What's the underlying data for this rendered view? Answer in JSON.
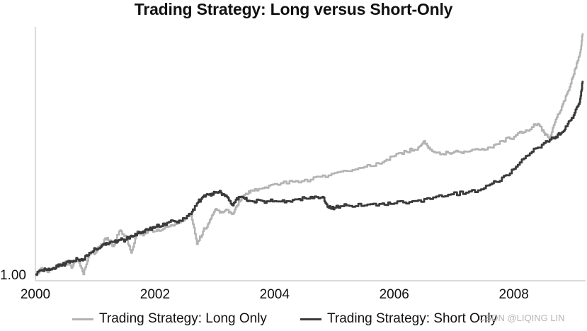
{
  "chart_data": {
    "type": "line",
    "title": "Trading Strategy: Long versus Short-Only",
    "xlabel": "",
    "ylabel": "",
    "x_ticks": [
      "2000",
      "2002",
      "2004",
      "2006",
      "2008"
    ],
    "y_ticks": [
      "1.00"
    ],
    "xlim": [
      2000,
      2009.2
    ],
    "ylim": [
      0.97,
      2.15
    ],
    "grid": false,
    "legend_position": "bottom",
    "series": [
      {
        "name": "Trading Strategy: Long Only",
        "color": "#b3b3b3",
        "x": [
          2000.0,
          2000.1,
          2000.2,
          2000.3,
          2000.4,
          2000.5,
          2000.6,
          2000.7,
          2000.8,
          2000.9,
          2001.0,
          2001.1,
          2001.2,
          2001.3,
          2001.4,
          2001.5,
          2001.6,
          2001.7,
          2001.8,
          2001.9,
          2002.0,
          2002.2,
          2002.4,
          2002.6,
          2002.7,
          2002.8,
          2002.9,
          2003.0,
          2003.1,
          2003.2,
          2003.3,
          2003.4,
          2003.5,
          2003.6,
          2003.8,
          2004.0,
          2004.3,
          2004.6,
          2004.9,
          2005.2,
          2005.5,
          2005.8,
          2006.0,
          2006.2,
          2006.4,
          2006.5,
          2006.6,
          2006.8,
          2007.0,
          2007.2,
          2007.4,
          2007.6,
          2007.8,
          2008.0,
          2008.2,
          2008.4,
          2008.5,
          2008.6,
          2008.7,
          2008.8,
          2008.9,
          2009.0,
          2009.1,
          2009.15
        ],
        "values": [
          0.995,
          1.03,
          1.01,
          1.03,
          1.04,
          1.06,
          1.03,
          1.07,
          1.0,
          1.1,
          1.1,
          1.14,
          1.17,
          1.13,
          1.2,
          1.18,
          1.1,
          1.2,
          1.18,
          1.21,
          1.2,
          1.22,
          1.24,
          1.28,
          1.14,
          1.2,
          1.24,
          1.3,
          1.29,
          1.3,
          1.28,
          1.34,
          1.37,
          1.39,
          1.4,
          1.42,
          1.43,
          1.44,
          1.46,
          1.48,
          1.5,
          1.52,
          1.55,
          1.57,
          1.59,
          1.62,
          1.58,
          1.56,
          1.57,
          1.57,
          1.58,
          1.59,
          1.62,
          1.64,
          1.67,
          1.7,
          1.66,
          1.63,
          1.72,
          1.78,
          1.85,
          1.93,
          2.02,
          2.12
        ]
      },
      {
        "name": "Trading Strategy: Short Only",
        "color": "#3a3a3a",
        "x": [
          2000.0,
          2000.1,
          2000.2,
          2000.3,
          2000.4,
          2000.5,
          2000.6,
          2000.7,
          2000.8,
          2000.9,
          2001.0,
          2001.1,
          2001.2,
          2001.3,
          2001.4,
          2001.5,
          2001.6,
          2001.7,
          2001.8,
          2001.9,
          2002.0,
          2002.2,
          2002.4,
          2002.6,
          2002.7,
          2002.8,
          2002.9,
          2003.0,
          2003.1,
          2003.2,
          2003.3,
          2003.4,
          2003.5,
          2003.6,
          2003.8,
          2004.0,
          2004.2,
          2004.4,
          2004.6,
          2004.8,
          2004.9,
          2005.0,
          2005.2,
          2005.5,
          2005.8,
          2006.0,
          2006.3,
          2006.6,
          2006.9,
          2007.2,
          2007.5,
          2007.7,
          2007.9,
          2008.1,
          2008.3,
          2008.5,
          2008.7,
          2008.8,
          2008.9,
          2009.0,
          2009.1,
          2009.15
        ],
        "values": [
          1.0,
          1.02,
          1.02,
          1.03,
          1.04,
          1.05,
          1.06,
          1.07,
          1.07,
          1.1,
          1.12,
          1.13,
          1.14,
          1.15,
          1.16,
          1.16,
          1.18,
          1.19,
          1.2,
          1.21,
          1.22,
          1.24,
          1.25,
          1.28,
          1.33,
          1.36,
          1.37,
          1.38,
          1.38,
          1.36,
          1.32,
          1.36,
          1.35,
          1.34,
          1.34,
          1.34,
          1.34,
          1.35,
          1.36,
          1.36,
          1.31,
          1.31,
          1.32,
          1.32,
          1.33,
          1.33,
          1.34,
          1.35,
          1.37,
          1.38,
          1.4,
          1.43,
          1.46,
          1.52,
          1.57,
          1.61,
          1.64,
          1.66,
          1.7,
          1.74,
          1.8,
          1.9
        ]
      }
    ]
  },
  "watermark": "CSDN @LIQING LIN"
}
